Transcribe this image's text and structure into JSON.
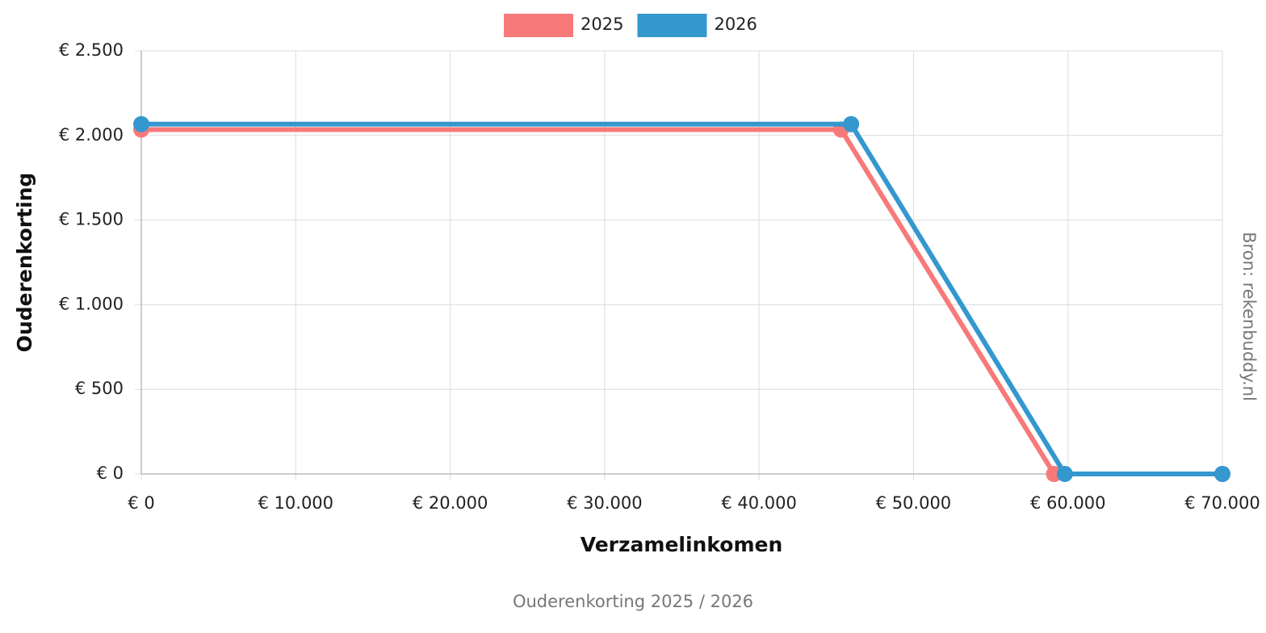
{
  "chart_data": {
    "type": "line",
    "title": "Ouderenkorting  2025 / 2026",
    "source": "Bron: rekenbuddy.nl",
    "x_label": "Verzamelinkomen",
    "y_label": "Ouderenkorting",
    "series": [
      {
        "name": "2025",
        "color": "#f87979",
        "x": [
          0,
          45308,
          59100,
          70000
        ],
        "values": [
          2035,
          2035,
          0,
          0
        ]
      },
      {
        "name": "2026",
        "color": "#3498cf",
        "x": [
          0,
          45960,
          59800,
          70000
        ],
        "values": [
          2067,
          2067,
          0,
          0
        ]
      }
    ],
    "xlim": [
      0,
      70000
    ],
    "xticks": [
      {
        "value": 0,
        "label": "€ 0"
      },
      {
        "value": 10000,
        "label": "€ 10.000"
      },
      {
        "value": 20000,
        "label": "€ 20.000"
      },
      {
        "value": 30000,
        "label": "€ 30.000"
      },
      {
        "value": 40000,
        "label": "€ 40.000"
      },
      {
        "value": 50000,
        "label": "€ 50.000"
      },
      {
        "value": 60000,
        "label": "€ 60.000"
      },
      {
        "value": 70000,
        "label": "€ 70.000"
      }
    ],
    "ylim": [
      0,
      2500
    ],
    "yticks": [
      {
        "value": 0,
        "label": "€ 0"
      },
      {
        "value": 500,
        "label": "€ 500"
      },
      {
        "value": 1000,
        "label": "€ 1.000"
      },
      {
        "value": 1500,
        "label": "€ 1.500"
      },
      {
        "value": 2000,
        "label": "€ 2.000"
      },
      {
        "value": 2500,
        "label": "€ 2.500"
      }
    ],
    "grid": true,
    "legend": "top"
  }
}
